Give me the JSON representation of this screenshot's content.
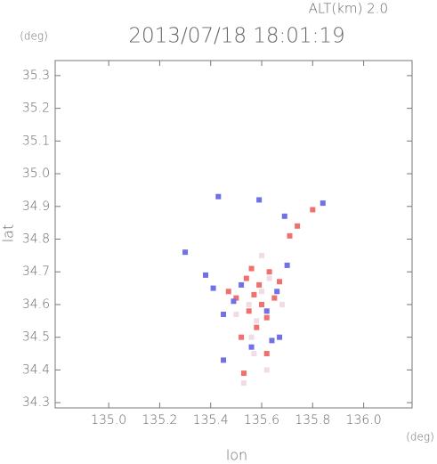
{
  "chart_data": {
    "type": "scatter",
    "title": "2013/07/18 18:01:19",
    "annotation": "ALT(km)  2.0",
    "y_unit": "(deg)",
    "x_unit": "(deg)",
    "x_label": "lon",
    "y_label": "lat",
    "xlim": [
      134.79,
      136.19
    ],
    "ylim": [
      34.284,
      35.346
    ],
    "xticks": [
      {
        "value": 135.0,
        "label": "135.0"
      },
      135.2,
      135.4,
      135.6,
      135.8,
      {
        "value": 136.0,
        "label": "136.0"
      }
    ],
    "yticks": [
      34.3,
      34.4,
      34.5,
      34.6,
      34.7,
      34.8,
      34.9,
      {
        "value": 35.0,
        "label": "35.0"
      },
      35.1,
      35.2,
      35.3
    ],
    "series": [
      {
        "color": "#f0dce4",
        "x": [
          135.55,
          135.6,
          135.58,
          135.63,
          135.5,
          135.57,
          135.53,
          135.62,
          135.6,
          135.68,
          135.56
        ],
        "values": [
          34.6,
          34.64,
          34.55,
          34.68,
          34.57,
          34.45,
          34.36,
          34.4,
          34.75,
          34.6,
          34.5
        ]
      },
      {
        "color": "#f07070",
        "x": [
          135.59,
          135.55,
          135.62,
          135.8,
          135.71,
          135.52,
          135.62,
          135.56,
          135.54,
          135.65,
          135.6,
          135.5,
          135.67,
          135.58,
          135.53,
          135.47,
          135.63,
          135.74,
          135.57
        ],
        "values": [
          34.66,
          34.58,
          34.56,
          34.89,
          34.81,
          34.5,
          34.45,
          34.71,
          34.68,
          34.62,
          34.6,
          34.62,
          34.67,
          34.53,
          34.39,
          34.64,
          34.7,
          34.84,
          34.63
        ]
      },
      {
        "color": "#7070e8",
        "x": [
          135.41,
          135.64,
          135.43,
          135.59,
          135.84,
          135.49,
          135.66,
          135.56,
          135.45,
          135.3,
          135.69,
          135.45,
          135.52,
          135.62,
          135.7,
          135.67,
          135.38
        ],
        "values": [
          34.65,
          34.49,
          34.93,
          34.92,
          34.91,
          34.61,
          34.64,
          34.47,
          34.57,
          34.76,
          34.87,
          34.43,
          34.66,
          34.58,
          34.72,
          34.5,
          34.69
        ]
      }
    ]
  }
}
